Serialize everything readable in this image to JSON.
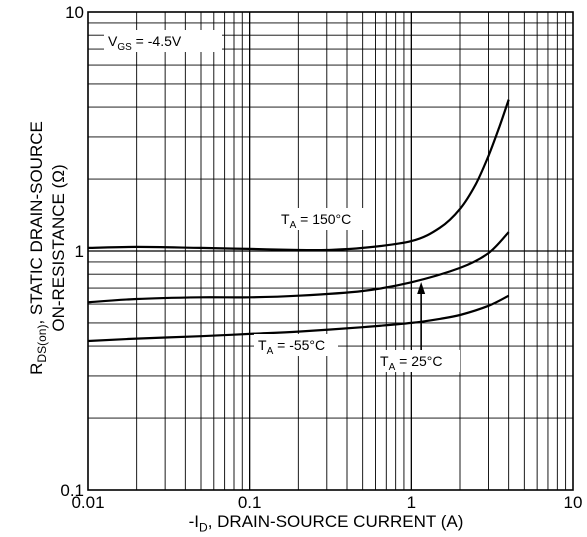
{
  "chart_data": {
    "type": "line",
    "xscale": "log",
    "yscale": "log",
    "xlim": [
      0.01,
      10
    ],
    "ylim": [
      0.1,
      10
    ],
    "xticks": [
      {
        "value": 0.01,
        "label": "0.01"
      },
      {
        "value": 0.1,
        "label": "0.1"
      },
      {
        "value": 1,
        "label": "1"
      },
      {
        "value": 10,
        "label": "10"
      }
    ],
    "yticks": [
      {
        "value": 0.1,
        "label": "0.1"
      },
      {
        "value": 1,
        "label": "1"
      },
      {
        "value": 10,
        "label": "10"
      }
    ],
    "grid": true,
    "xlabel": {
      "prefix": "-I",
      "sub": "D",
      "suffix": ", DRAIN-SOURCE CURRENT (A)"
    },
    "ylabel_line1": {
      "prefix": "R",
      "sub": "DS(on)",
      "suffix": ", STATIC DRAIN-SOURCE"
    },
    "ylabel_line2": "ON-RESISTANCE (Ω)",
    "condition": {
      "prefix": "V",
      "sub": "GS",
      "suffix": " = -4.5V"
    },
    "series": [
      {
        "label_prefix": "T",
        "label_sub": "A",
        "label_suffix": " = 150°C",
        "x": [
          0.01,
          0.02,
          0.05,
          0.1,
          0.2,
          0.3,
          0.5,
          1,
          1.5,
          2,
          2.5,
          3,
          3.5,
          4
        ],
        "y": [
          1.03,
          1.04,
          1.03,
          1.02,
          1.01,
          1.01,
          1.03,
          1.1,
          1.25,
          1.5,
          1.9,
          2.5,
          3.3,
          4.3
        ]
      },
      {
        "label_prefix": "T",
        "label_sub": "A",
        "label_suffix": " = 25°C",
        "x": [
          0.01,
          0.02,
          0.05,
          0.1,
          0.2,
          0.5,
          1,
          2,
          3,
          4
        ],
        "y": [
          0.61,
          0.63,
          0.64,
          0.64,
          0.65,
          0.68,
          0.74,
          0.85,
          0.98,
          1.2
        ]
      },
      {
        "label_prefix": "T",
        "label_sub": "A",
        "label_suffix": " = -55°C",
        "x": [
          0.01,
          0.02,
          0.05,
          0.1,
          0.2,
          0.5,
          1,
          1.5,
          2,
          3,
          4
        ],
        "y": [
          0.42,
          0.43,
          0.44,
          0.45,
          0.46,
          0.48,
          0.5,
          0.52,
          0.54,
          0.59,
          0.65
        ]
      }
    ]
  }
}
